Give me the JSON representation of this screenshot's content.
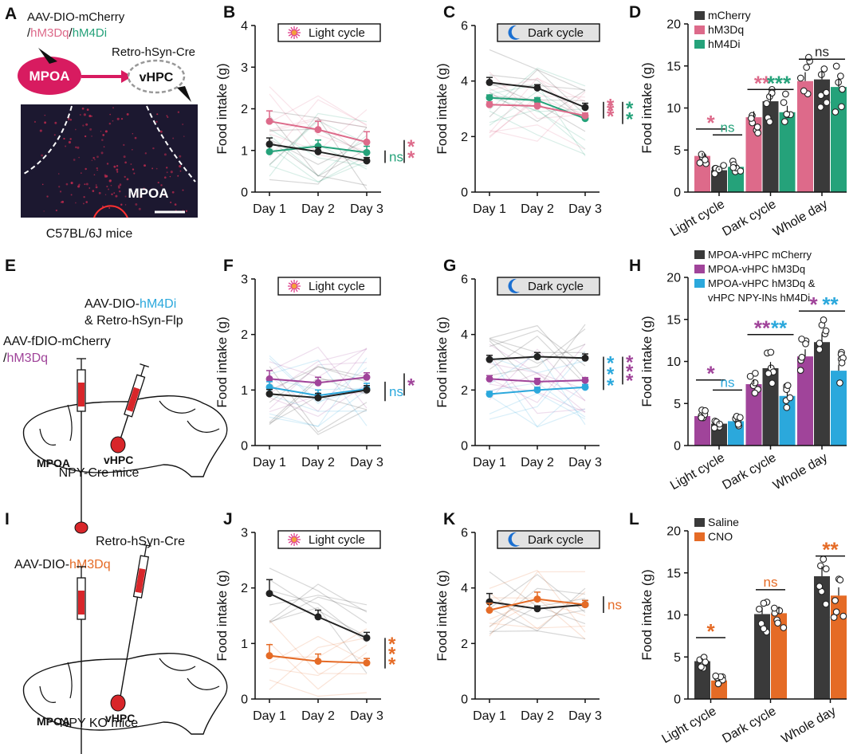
{
  "colors": {
    "black": "#222222",
    "pink": "#dd6a8a",
    "green": "#25a27a",
    "purple": "#a0449a",
    "cyan": "#2ba8dc",
    "orange": "#e56b26",
    "bar_dark": "#3a3a3a",
    "red_region": "#d8262a",
    "mpoa_fill": "#d81b60"
  },
  "rows": [
    {
      "schematic": {
        "panel": "A",
        "virus_label_1": "AAV-DIO-mCherry",
        "virus_label_2": [
          "/",
          "hM3Dq",
          "/",
          "hM4Di"
        ],
        "retro_label": "Retro-hSyn-Cre",
        "region_1": "MPOA",
        "region_2": "vHPC",
        "image_label": "MPOA",
        "mouse_label": "C57BL/6J mice"
      },
      "line_panels": [
        {
          "panel": "B",
          "cycle": "light",
          "cycle_label": "Light cycle",
          "ylabel": "Food intake (g)",
          "ylim": [
            0,
            4
          ],
          "yticks": [
            "0",
            "1",
            "2",
            "3",
            "4"
          ],
          "categories": [
            "Day 1",
            "Day 2",
            "Day 3"
          ],
          "series": [
            {
              "color": "pink",
              "values": [
                1.7,
                1.5,
                1.2
              ],
              "err": [
                0.25,
                0.2,
                0.25
              ]
            },
            {
              "color": "green",
              "values": [
                0.97,
                1.1,
                0.95
              ],
              "err": [
                0.15,
                0.15,
                0.15
              ]
            },
            {
              "color": "black",
              "values": [
                1.15,
                0.97,
                0.75
              ],
              "err": [
                0.15,
                0.1,
                0.08
              ]
            }
          ],
          "sig": [
            {
              "text": "ns",
              "color": "green",
              "y_top": 1.0,
              "y_bottom": 0.7
            },
            {
              "text": "**",
              "color": "pink",
              "y_top": 1.25,
              "y_bottom": 0.7
            }
          ]
        },
        {
          "panel": "C",
          "cycle": "dark",
          "cycle_label": "Dark cycle",
          "ylabel": "Food intake (g)",
          "ylim": [
            0,
            6
          ],
          "yticks": [
            "0",
            "2",
            "4",
            "6"
          ],
          "categories": [
            "Day 1",
            "Day 2",
            "Day 3"
          ],
          "series": [
            {
              "color": "black",
              "values": [
                3.95,
                3.75,
                3.05
              ],
              "err": [
                0.18,
                0.12,
                0.15
              ]
            },
            {
              "color": "green",
              "values": [
                3.4,
                3.3,
                2.65
              ],
              "err": [
                0.1,
                0.1,
                0.1
              ]
            },
            {
              "color": "pink",
              "values": [
                3.15,
                3.1,
                2.75
              ],
              "err": [
                0.1,
                0.1,
                0.1
              ]
            }
          ],
          "sig": [
            {
              "text": "***",
              "color": "pink",
              "y_top": 3.25,
              "y_bottom": 2.65
            },
            {
              "text": "**",
              "color": "green",
              "y_top": 3.25,
              "y_bottom": 2.45
            }
          ]
        }
      ],
      "bar_panel": {
        "panel": "D",
        "ylabel": "Food intake (g)",
        "ylim": [
          0,
          20
        ],
        "yticks": [
          "0",
          "5",
          "10",
          "15",
          "20"
        ],
        "groups": [
          "Light cycle",
          "Dark cycle",
          "Whole day"
        ],
        "legend": [
          {
            "label": "mCherry",
            "color": "bar_dark"
          },
          {
            "label": "hM3Dq",
            "color": "pink"
          },
          {
            "label": "hM4Di",
            "color": "green"
          }
        ],
        "bar_order": [
          "pink",
          "bar_dark",
          "green"
        ],
        "values": [
          [
            4.3,
            2.6,
            3.0
          ],
          [
            8.9,
            10.8,
            9.5
          ],
          [
            13.2,
            13.4,
            12.5
          ]
        ],
        "sig": [
          {
            "group": 0,
            "from": 0,
            "to": 1,
            "text": "*",
            "color": "pink",
            "y": 7.5
          },
          {
            "group": 0,
            "from": 1,
            "to": 2,
            "text": "ns",
            "color": "green",
            "y": 6.8
          },
          {
            "group": 1,
            "from": 0,
            "to": 1,
            "text": "**",
            "color": "pink",
            "y": 12.2
          },
          {
            "group": 1,
            "from": 1,
            "to": 2,
            "text": "***",
            "color": "green",
            "y": 12.2
          },
          {
            "group": 2,
            "from": 0,
            "to": 2,
            "text": "ns",
            "color": "black",
            "y": 15.8
          }
        ]
      }
    },
    {
      "schematic": {
        "panel": "E",
        "virus_label_1": [
          "AAV-DIO-",
          "hM4Di"
        ],
        "virus_label_1b": "& Retro-hSyn-Flp",
        "virus_label_2": "AAV-fDIO-mCherry",
        "virus_label_2b": [
          "/",
          "hM3Dq"
        ],
        "region_1": "MPOA",
        "region_2": "vHPC",
        "mouse_label": "NPY-Cre mice"
      },
      "line_panels": [
        {
          "panel": "F",
          "cycle": "light",
          "cycle_label": "Light cycle",
          "ylabel": "Food intake (g)",
          "ylim": [
            0,
            3
          ],
          "yticks": [
            "0",
            "1",
            "2",
            "3"
          ],
          "categories": [
            "Day 1",
            "Day 2",
            "Day 3"
          ],
          "series": [
            {
              "color": "purple",
              "values": [
                1.2,
                1.13,
                1.23
              ],
              "err": [
                0.15,
                0.1,
                0.08
              ]
            },
            {
              "color": "cyan",
              "values": [
                1.05,
                0.9,
                1.02
              ],
              "err": [
                0.1,
                0.1,
                0.1
              ]
            },
            {
              "color": "black",
              "values": [
                0.93,
                0.86,
                1.0
              ],
              "err": [
                0.08,
                0.08,
                0.08
              ]
            }
          ],
          "sig": [
            {
              "text": "ns",
              "color": "cyan",
              "y_top": 1.15,
              "y_bottom": 0.8
            },
            {
              "text": "*",
              "color": "purple",
              "y_top": 1.3,
              "y_bottom": 0.9
            }
          ]
        },
        {
          "panel": "G",
          "cycle": "dark",
          "cycle_label": "Dark cycle",
          "ylabel": "Food intake (g)",
          "ylim": [
            0,
            6
          ],
          "yticks": [
            "0",
            "2",
            "4",
            "6"
          ],
          "categories": [
            "Day 1",
            "Day 2",
            "Day 3"
          ],
          "series": [
            {
              "color": "black",
              "values": [
                3.1,
                3.2,
                3.15
              ],
              "err": [
                0.15,
                0.15,
                0.15
              ]
            },
            {
              "color": "purple",
              "values": [
                2.4,
                2.3,
                2.35
              ],
              "err": [
                0.12,
                0.12,
                0.1
              ]
            },
            {
              "color": "cyan",
              "values": [
                1.85,
                2.0,
                2.1
              ],
              "err": [
                0.1,
                0.1,
                0.1
              ]
            }
          ],
          "sig": [
            {
              "text": "***",
              "color": "cyan",
              "y_top": 3.2,
              "y_bottom": 2.0
            },
            {
              "text": "***",
              "color": "purple",
              "y_top": 3.2,
              "y_bottom": 2.2
            }
          ]
        }
      ],
      "bar_panel": {
        "panel": "H",
        "ylabel": "Food intake (g)",
        "ylim": [
          0,
          20
        ],
        "yticks": [
          "0",
          "5",
          "10",
          "15",
          "20"
        ],
        "groups": [
          "Light cycle",
          "Dark cycle",
          "Whole day"
        ],
        "legend": [
          {
            "label": "MPOA-vHPC mCherry",
            "color": "bar_dark"
          },
          {
            "label": "MPOA-vHPC hM3Dq",
            "color": "purple"
          },
          {
            "label": "MPOA-vHPC hM3Dq &",
            "color": "cyan"
          },
          {
            "label": "vHPC NPY-INs hM4Di",
            "color": ""
          }
        ],
        "bar_order": [
          "purple",
          "bar_dark",
          "cyan"
        ],
        "values": [
          [
            3.5,
            2.6,
            2.9
          ],
          [
            7.3,
            9.2,
            5.9
          ],
          [
            10.6,
            12.3,
            8.9
          ]
        ],
        "sig": [
          {
            "group": 0,
            "from": 0,
            "to": 1,
            "text": "*",
            "color": "purple",
            "y": 7.8
          },
          {
            "group": 0,
            "from": 1,
            "to": 2,
            "text": "ns",
            "color": "cyan",
            "y": 6.6
          },
          {
            "group": 1,
            "from": 0,
            "to": 1,
            "text": "**",
            "color": "purple",
            "y": 13.2
          },
          {
            "group": 1,
            "from": 1,
            "to": 2,
            "text": "**",
            "color": "cyan",
            "y": 13.2
          },
          {
            "group": 2,
            "from": 0,
            "to": 1,
            "text": "*",
            "color": "purple",
            "y": 16.0
          },
          {
            "group": 2,
            "from": 1,
            "to": 2,
            "text": "**",
            "color": "cyan",
            "y": 16.0
          }
        ]
      }
    },
    {
      "schematic": {
        "panel": "I",
        "retro_label": "Retro-hSyn-Cre",
        "virus_label_2": [
          "AAV-DIO-",
          "hM3Dq"
        ],
        "region_1": "MPOA",
        "region_2": "vHPC",
        "mouse_label": "NPY KO mice"
      },
      "line_panels": [
        {
          "panel": "J",
          "cycle": "light",
          "cycle_label": "Light cycle",
          "ylabel": "Food intake (g)",
          "ylim": [
            0,
            3
          ],
          "yticks": [
            "0",
            "1",
            "2",
            "3"
          ],
          "categories": [
            "Day 1",
            "Day 2",
            "Day 3"
          ],
          "series": [
            {
              "color": "black",
              "values": [
                1.9,
                1.48,
                1.1
              ],
              "err": [
                0.25,
                0.12,
                0.1
              ]
            },
            {
              "color": "orange",
              "values": [
                0.78,
                0.68,
                0.65
              ],
              "err": [
                0.2,
                0.13,
                0.08
              ]
            }
          ],
          "sig": [
            {
              "text": "***",
              "color": "orange",
              "y_top": 1.1,
              "y_bottom": 0.55
            }
          ]
        },
        {
          "panel": "K",
          "cycle": "dark",
          "cycle_label": "Dark cycle",
          "ylabel": "Food intake (g)",
          "ylim": [
            0,
            6
          ],
          "yticks": [
            "0",
            "2",
            "4",
            "6"
          ],
          "categories": [
            "Day 1",
            "Day 2",
            "Day 3"
          ],
          "series": [
            {
              "color": "black",
              "values": [
                3.5,
                3.25,
                3.4
              ],
              "err": [
                0.3,
                0.1,
                0.15
              ]
            },
            {
              "color": "orange",
              "values": [
                3.2,
                3.6,
                3.4
              ],
              "err": [
                0.25,
                0.25,
                0.15
              ]
            }
          ],
          "sig": [
            {
              "text": "ns",
              "color": "orange",
              "y_top": 3.7,
              "y_bottom": 3.1
            }
          ]
        }
      ],
      "bar_panel": {
        "panel": "L",
        "ylabel": "Food intake (g)",
        "ylim": [
          0,
          20
        ],
        "yticks": [
          "0",
          "5",
          "10",
          "15",
          "20"
        ],
        "groups": [
          "Light cycle",
          "Dark cycle",
          "Whole day"
        ],
        "legend": [
          {
            "label": "Saline",
            "color": "bar_dark"
          },
          {
            "label": "CNO",
            "color": "orange"
          }
        ],
        "bar_order": [
          "bar_dark",
          "orange"
        ],
        "values": [
          [
            4.5,
            2.2
          ],
          [
            10.1,
            10.2
          ],
          [
            14.6,
            12.3
          ]
        ],
        "sig": [
          {
            "group": 0,
            "from": 0,
            "to": 1,
            "text": "*",
            "color": "orange",
            "y": 7.3
          },
          {
            "group": 1,
            "from": 0,
            "to": 1,
            "text": "ns",
            "color": "orange",
            "y": 13.0
          },
          {
            "group": 2,
            "from": 0,
            "to": 1,
            "text": "**",
            "color": "orange",
            "y": 17.0
          }
        ]
      }
    }
  ]
}
